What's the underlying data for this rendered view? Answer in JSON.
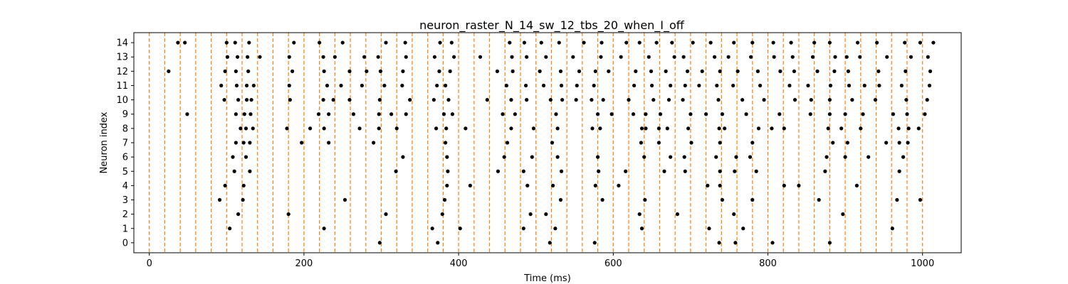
{
  "chart_data": {
    "type": "scatter",
    "title": "neuron_raster_N_14_sw_12_tbs_20_when_I_off",
    "xlabel": "Time (ms)",
    "ylabel": "Neuron index",
    "xlim": [
      -20,
      1050
    ],
    "ylim": [
      -0.7,
      14.7
    ],
    "x_ticks": [
      0,
      200,
      400,
      600,
      800,
      1000
    ],
    "y_ticks": [
      0,
      1,
      2,
      3,
      4,
      5,
      6,
      7,
      8,
      9,
      10,
      11,
      12,
      13,
      14
    ],
    "grid": false,
    "colors": {
      "spike": "#000000",
      "boundary": "#ff7f0e"
    },
    "time_bin_boundaries": [
      0,
      20,
      40,
      60,
      80,
      100,
      120,
      140,
      160,
      180,
      200,
      220,
      240,
      260,
      280,
      300,
      320,
      340,
      360,
      380,
      400,
      420,
      440,
      460,
      480,
      500,
      520,
      540,
      560,
      580,
      600,
      620,
      640,
      660,
      680,
      700,
      720,
      740,
      760,
      780,
      800,
      820,
      840,
      860,
      880,
      900,
      920,
      940,
      960,
      980,
      1000
    ],
    "spikes": [
      {
        "neuron": 0,
        "times": [
          298,
          373,
          518,
          576,
          737,
          758,
          806,
          880
        ]
      },
      {
        "neuron": 1,
        "times": [
          104,
          226,
          366,
          402,
          484,
          525,
          637,
          724,
          768,
          961
        ]
      },
      {
        "neuron": 2,
        "times": [
          115,
          180,
          306,
          379,
          493,
          513,
          634,
          683,
          756,
          897
        ]
      },
      {
        "neuron": 3,
        "times": [
          91,
          121,
          253,
          382,
          532,
          586,
          641,
          741,
          780,
          866,
          967,
          997
        ]
      },
      {
        "neuron": 4,
        "times": [
          98,
          122,
          385,
          415,
          489,
          522,
          577,
          607,
          722,
          738,
          821,
          840,
          915
        ]
      },
      {
        "neuron": 5,
        "times": [
          110,
          130,
          319,
          386,
          451,
          484,
          533,
          581,
          616,
          666,
          693,
          738,
          757,
          785,
          874,
          970
        ]
      },
      {
        "neuron": 6,
        "times": [
          108,
          125,
          328,
          385,
          459,
          495,
          528,
          580,
          640,
          674,
          692,
          733,
          759,
          777,
          876,
          900,
          930,
          975
        ]
      },
      {
        "neuron": 7,
        "times": [
          112,
          122,
          130,
          197,
          232,
          290,
          383,
          463,
          521,
          636,
          659,
          701,
          738,
          780,
          884,
          903,
          953,
          970,
          981
        ]
      },
      {
        "neuron": 8,
        "times": [
          118,
          125,
          134,
          178,
          208,
          226,
          272,
          297,
          320,
          371,
          384,
          409,
          468,
          497,
          528,
          573,
          583,
          637,
          642,
          659,
          670,
          697,
          737,
          744,
          788,
          805,
          821,
          878,
          895,
          920,
          969,
          982,
          995
        ]
      },
      {
        "neuron": 9,
        "times": [
          49,
          112,
          123,
          131,
          219,
          232,
          264,
          297,
          313,
          332,
          381,
          392,
          457,
          473,
          526,
          580,
          598,
          626,
          642,
          661,
          700,
          720,
          741,
          772,
          815,
          855,
          880,
          900,
          923,
          962,
          980,
          1003
        ]
      },
      {
        "neuron": 10,
        "times": [
          97,
          115,
          126,
          132,
          182,
          225,
          238,
          259,
          298,
          337,
          368,
          387,
          437,
          468,
          488,
          519,
          534,
          552,
          572,
          587,
          620,
          652,
          672,
          690,
          736,
          767,
          795,
          835,
          856,
          880,
          909,
          939,
          979,
          1006
        ]
      },
      {
        "neuron": 11,
        "times": [
          93,
          113,
          126,
          135,
          181,
          230,
          248,
          275,
          304,
          327,
          372,
          383,
          462,
          487,
          510,
          533,
          553,
          575,
          627,
          650,
          674,
          693,
          711,
          734,
          755,
          790,
          828,
          852,
          881,
          905,
          925,
          944,
          973,
          1009
        ]
      },
      {
        "neuron": 12,
        "times": [
          25,
          98,
          112,
          128,
          185,
          226,
          259,
          281,
          299,
          328,
          375,
          389,
          450,
          470,
          505,
          532,
          556,
          577,
          594,
          629,
          649,
          668,
          696,
          715,
          738,
          761,
          787,
          816,
          834,
          864,
          886,
          904,
          943,
          978,
          1010
        ]
      },
      {
        "neuron": 13,
        "times": [
          101,
          114,
          127,
          143,
          181,
          225,
          240,
          278,
          296,
          332,
          369,
          394,
          428,
          469,
          488,
          513,
          548,
          584,
          610,
          646,
          679,
          691,
          731,
          749,
          778,
          808,
          832,
          858,
          887,
          902,
          919,
          954,
          985,
          1007
        ]
      },
      {
        "neuron": 14,
        "times": [
          37,
          46,
          100,
          111,
          129,
          187,
          220,
          250,
          306,
          331,
          376,
          391,
          466,
          485,
          507,
          530,
          562,
          585,
          617,
          634,
          656,
          676,
          703,
          726,
          756,
          780,
          807,
          830,
          860,
          880,
          916,
          941,
          977,
          997,
          1014
        ]
      }
    ]
  }
}
